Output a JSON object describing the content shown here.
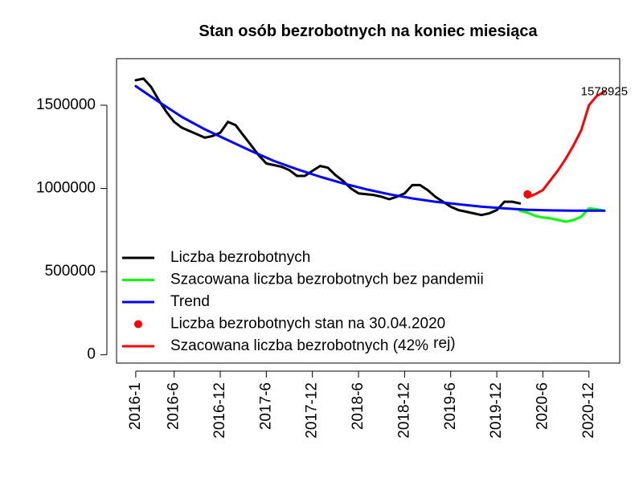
{
  "chart_data": {
    "type": "line",
    "title": "Stan osób bezrobotnych na koniec miesiąca",
    "xlabel": "",
    "ylabel": "",
    "ylim": [
      -50000,
      1780000
    ],
    "xlim_months": [
      -2.5,
      63
    ],
    "y_ticks": [
      0,
      500000,
      1000000,
      1500000
    ],
    "y_tick_labels": [
      "0",
      "500000",
      "1000000",
      "1500000"
    ],
    "x_ticks": [
      {
        "label": "2016-1",
        "month_index": 0
      },
      {
        "label": "2016-6",
        "month_index": 5
      },
      {
        "label": "2016-12",
        "month_index": 11
      },
      {
        "label": "2017-6",
        "month_index": 17
      },
      {
        "label": "2017-12",
        "month_index": 23
      },
      {
        "label": "2018-6",
        "month_index": 29
      },
      {
        "label": "2018-12",
        "month_index": 35
      },
      {
        "label": "2019-6",
        "month_index": 41
      },
      {
        "label": "2019-12",
        "month_index": 47
      },
      {
        "label": "2020-6",
        "month_index": 53
      },
      {
        "label": "2020-12",
        "month_index": 59
      }
    ],
    "series": [
      {
        "name": "Liczba bezrobotnych",
        "color": "#000000",
        "x": [
          0,
          1,
          2,
          3,
          4,
          5,
          6,
          7,
          8,
          9,
          10,
          11,
          12,
          13,
          14,
          15,
          16,
          17,
          18,
          19,
          20,
          21,
          22,
          23,
          24,
          25,
          26,
          27,
          28,
          29,
          30,
          31,
          32,
          33,
          34,
          35,
          36,
          37,
          38,
          39,
          40,
          41,
          42,
          43,
          44,
          45,
          46,
          47,
          48,
          49,
          50
        ],
        "y": [
          1650000,
          1660000,
          1610000,
          1530000,
          1460000,
          1400000,
          1365000,
          1345000,
          1325000,
          1305000,
          1315000,
          1335000,
          1400000,
          1380000,
          1320000,
          1260000,
          1200000,
          1150000,
          1140000,
          1130000,
          1110000,
          1075000,
          1075000,
          1105000,
          1135000,
          1125000,
          1080000,
          1045000,
          1000000,
          970000,
          965000,
          960000,
          950000,
          935000,
          950000,
          970000,
          1020000,
          1020000,
          990000,
          950000,
          920000,
          890000,
          870000,
          860000,
          850000,
          840000,
          850000,
          870000,
          920000,
          920000,
          910000
        ]
      },
      {
        "name": "Szacowana liczba bezrobotnych bez pandemii",
        "color": "#00ff00",
        "x": [
          50,
          51,
          52,
          53,
          54,
          55,
          56,
          57,
          58,
          59,
          60,
          61
        ],
        "y": [
          865000,
          855000,
          835000,
          825000,
          820000,
          810000,
          800000,
          810000,
          830000,
          880000,
          875000,
          865000
        ]
      },
      {
        "name": "Trend",
        "color": "#0000ff",
        "x": [
          0,
          3,
          6,
          9,
          12,
          15,
          18,
          21,
          24,
          27,
          30,
          33,
          36,
          39,
          42,
          45,
          48,
          51,
          54,
          57,
          60,
          61
        ],
        "y": [
          1615000,
          1520000,
          1430000,
          1355000,
          1290000,
          1225000,
          1165000,
          1115000,
          1070000,
          1030000,
          995000,
          965000,
          940000,
          920000,
          905000,
          890000,
          880000,
          872000,
          868000,
          866000,
          866000,
          866000
        ]
      },
      {
        "name": "Liczba bezrobotnych stan na 30.04.2020",
        "color": "#ff0000",
        "x": [
          51
        ],
        "y": [
          965000
        ]
      },
      {
        "name": "Szacowana liczba bezrobotnych (42% rej)",
        "color": "#ff0000",
        "x": [
          51,
          52,
          53,
          54,
          55,
          56,
          57,
          58,
          59,
          60,
          61
        ],
        "y": [
          945000,
          965000,
          990000,
          1050000,
          1110000,
          1180000,
          1260000,
          1350000,
          1500000,
          1555000,
          1578925
        ]
      }
    ],
    "annotations": [
      {
        "text": "1578925",
        "x": 61,
        "y": 1578925
      }
    ],
    "legend": {
      "position": "bottom-left",
      "items": [
        {
          "label": "Liczba bezrobotnych",
          "symbol": "line",
          "color": "#000000"
        },
        {
          "label": "Szacowana liczba bezrobotnych bez pandemii",
          "symbol": "line",
          "color": "#00ff00"
        },
        {
          "label": "Trend",
          "symbol": "line",
          "color": "#0000ff"
        },
        {
          "label": "Liczba bezrobotnych stan na 30.04.2020",
          "symbol": "point",
          "color": "#ff0000"
        },
        {
          "label": "Szacowana liczba bezrobotnych (42%",
          "symbol": "line",
          "color": "#ff0000"
        }
      ],
      "overflow_text": "rej)"
    },
    "grid": false
  }
}
